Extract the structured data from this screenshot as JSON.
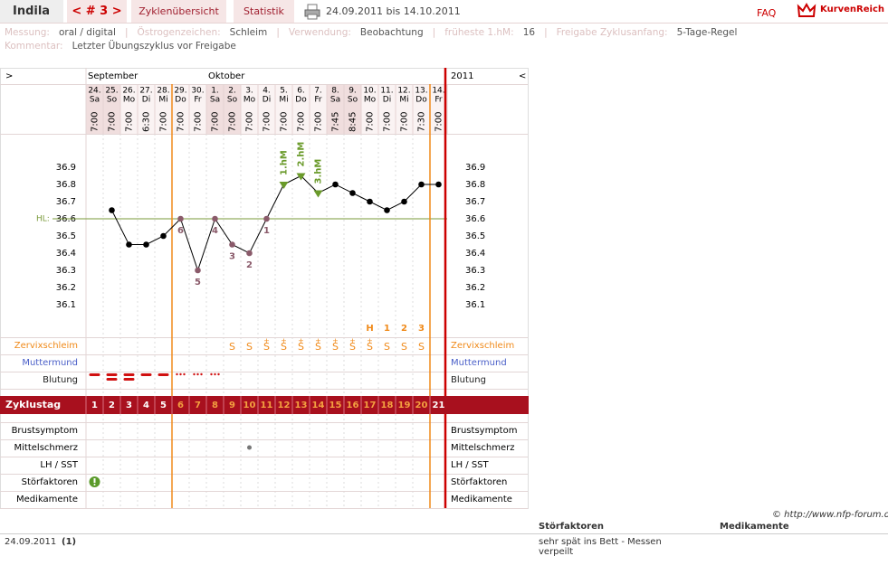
{
  "header": {
    "user": "Indila",
    "cycle_nav": "< # 3 >",
    "tabs": [
      "Zyklenübersicht",
      "Statistik"
    ],
    "period": "24.09.2011 bis 14.10.2011",
    "faq": "FAQ",
    "brand": "KurvenReich"
  },
  "info": {
    "fields": [
      {
        "label": "Messung:",
        "value": "oral / digital"
      },
      {
        "label": "Östrogenzeichen:",
        "value": "Schleim"
      },
      {
        "label": "Verwendung:",
        "value": "Beobachtung"
      },
      {
        "label": "früheste 1.hM:",
        "value": 16
      },
      {
        "label": "Freigabe Zyklusanfang:",
        "value": "5-Tage-Regel"
      }
    ],
    "separator": "|",
    "comment_label": "Kommentar:",
    "comment": "Letzter Übungszyklus vor Freigabe"
  },
  "chart_data": {
    "type": "line",
    "nav_left": ">",
    "nav_right": "<",
    "year": "2011",
    "months": [
      "September",
      null,
      null,
      null,
      null,
      null,
      null,
      "Oktober",
      null,
      null,
      null,
      null,
      null,
      null,
      null,
      null,
      null,
      null,
      null,
      null,
      null
    ],
    "categories": [
      "24.",
      "25.",
      "26.",
      "27.",
      "28.",
      "29.",
      "30.",
      "1.",
      "2.",
      "3.",
      "4.",
      "5.",
      "6.",
      "7.",
      "8.",
      "9.",
      "10.",
      "11.",
      "12.",
      "13.",
      "14."
    ],
    "weekdays": [
      "Sa",
      "So",
      "Mo",
      "Di",
      "Mi",
      "Do",
      "Fr",
      "Sa",
      "So",
      "Mo",
      "Di",
      "Mi",
      "Do",
      "Fr",
      "Sa",
      "So",
      "Mo",
      "Di",
      "Mi",
      "Do",
      "Fr"
    ],
    "times": [
      "7:00",
      "7:00",
      "7:00",
      "6:30",
      "7:00",
      "7:00",
      "7:00",
      "7:00",
      "7:00",
      "7:00",
      "7:00",
      "7:00",
      "7:00",
      "7:00",
      "7:45",
      "8:45",
      "7:00",
      "7:00",
      "7:00",
      "7:30",
      "7:00"
    ],
    "values": [
      null,
      36.65,
      36.45,
      36.45,
      36.5,
      36.6,
      36.3,
      36.6,
      36.45,
      36.4,
      36.6,
      36.8,
      36.85,
      36.75,
      36.8,
      36.75,
      36.7,
      36.65,
      36.7,
      36.8,
      36.8
    ],
    "color": "#000000",
    "point_labels": [
      null,
      null,
      null,
      null,
      null,
      6,
      5,
      4,
      3,
      2,
      1,
      null,
      null,
      null,
      null,
      null,
      null,
      null,
      null,
      null,
      null
    ],
    "hm_labels": [
      null,
      null,
      null,
      null,
      null,
      null,
      null,
      null,
      null,
      null,
      null,
      "1.hM",
      "2.hM",
      "3.hM",
      null,
      null,
      null,
      null,
      null,
      null,
      null
    ],
    "hl": {
      "label": "HL:",
      "value": 36.6
    },
    "ylim": [
      35.95,
      37.1
    ],
    "yticks": [
      36.1,
      36.2,
      36.3,
      36.4,
      36.5,
      36.6,
      36.7,
      36.8,
      36.9
    ],
    "peak_labels": [
      null,
      null,
      null,
      null,
      null,
      null,
      null,
      null,
      null,
      null,
      null,
      null,
      null,
      null,
      null,
      null,
      "H",
      1,
      2,
      3,
      null
    ],
    "cervix_plus": [
      null,
      null,
      null,
      null,
      null,
      null,
      null,
      null,
      null,
      null,
      "+",
      "+",
      "+",
      "+",
      "+",
      "+",
      "+",
      null,
      null,
      null,
      null
    ],
    "cervix": [
      null,
      null,
      null,
      null,
      null,
      null,
      null,
      null,
      "S",
      "S",
      "S",
      "S",
      "S",
      "S",
      "S",
      "S",
      "S",
      "S",
      "S",
      "S",
      null
    ],
    "top_rows": [
      "Zervixschleim",
      "Muttermund",
      "Blutung"
    ],
    "cycle_label": "Zyklustag",
    "cycle_days": [
      1,
      2,
      3,
      4,
      5,
      6,
      7,
      8,
      9,
      10,
      11,
      12,
      13,
      14,
      15,
      16,
      17,
      18,
      19,
      20,
      21
    ],
    "bottom_rows": [
      "Brustsymptom",
      "Mittelschmerz",
      "LH / SST",
      "Störfaktoren",
      "Medikamente"
    ]
  },
  "footer": {
    "copyright": "© http://www.nfp-forum.de",
    "headers": [
      "Störfaktoren",
      "Medikamente"
    ],
    "rows": [
      [
        "24.09.2011",
        "(1)",
        "sehr spät ins Bett - Messen verpeilt"
      ]
    ]
  }
}
